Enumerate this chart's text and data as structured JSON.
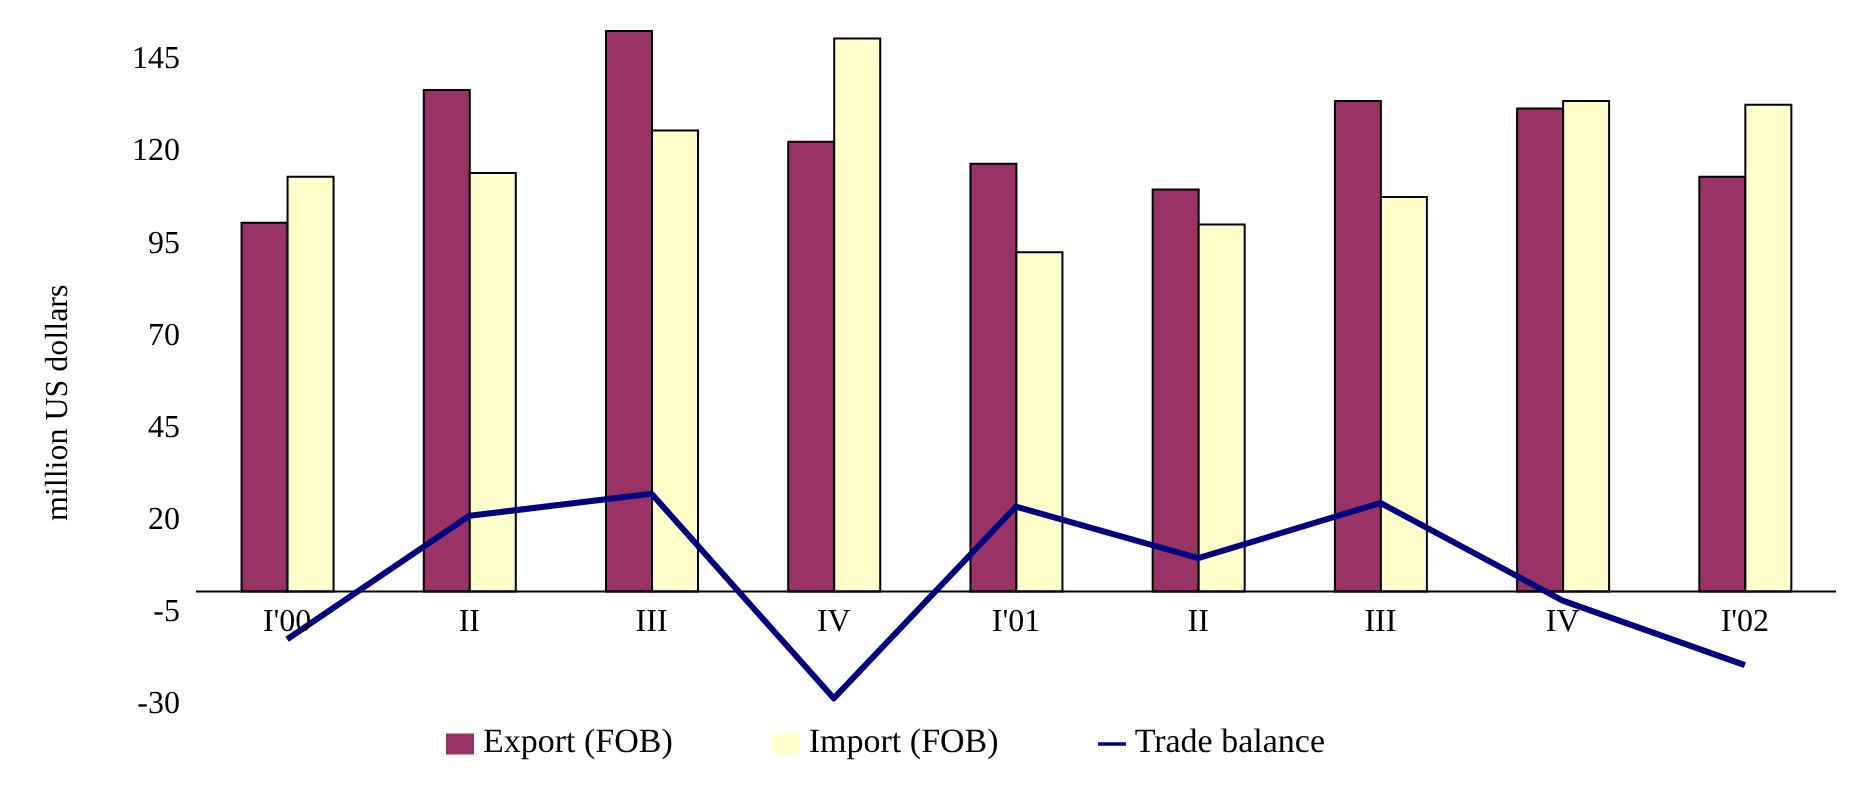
{
  "chart_data": {
    "type": "bar",
    "ylabel": "million US dollars",
    "categories": [
      "I'00",
      "II",
      "III",
      "IV",
      "I'01",
      "II",
      "III",
      "IV",
      "I'02"
    ],
    "series": [
      {
        "name": "Export (FOB)",
        "color": "#993366",
        "values": [
          100,
          136,
          152,
          122,
          116,
          109,
          133,
          131,
          112.5
        ]
      },
      {
        "name": "Import (FOB)",
        "color": "#ffffcc",
        "values": [
          112.5,
          113.5,
          125,
          150,
          92,
          99.5,
          107,
          133,
          132
        ]
      },
      {
        "name": "Trade balance",
        "type": "line",
        "color": "#000080",
        "values": [
          -13,
          20.5,
          26.5,
          -29,
          23,
          9,
          24,
          -2.5,
          -20
        ]
      }
    ],
    "ylim": [
      -30,
      155
    ],
    "yticks": [
      -30,
      -5,
      20,
      45,
      70,
      95,
      120,
      145
    ],
    "legend": "bottom",
    "marker": "none"
  }
}
